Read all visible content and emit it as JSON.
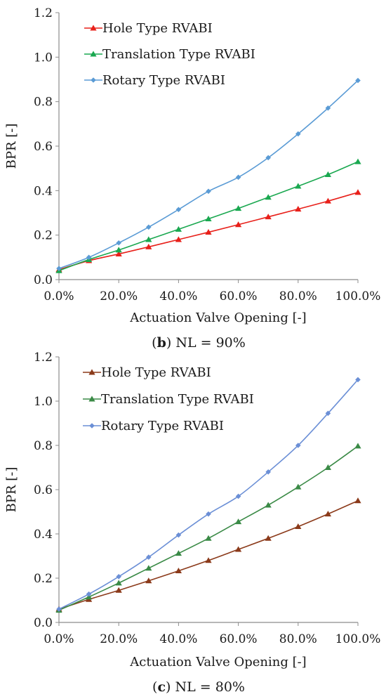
{
  "chart_data": [
    {
      "type": "line",
      "caption": {
        "letter": "b",
        "rest": " NL = 90%"
      },
      "xlabel": "Actuation Valve Opening [-]",
      "ylabel": "BPR [-]",
      "xlim": [
        0,
        100
      ],
      "ylim": [
        0,
        1.2
      ],
      "yticks": [
        "0.0",
        "0.2",
        "0.4",
        "0.6",
        "0.8",
        "1.0",
        "1.2"
      ],
      "xticks": [
        "0.0%",
        "20.0%",
        "40.0%",
        "60.0%",
        "80.0%",
        "100.0%"
      ],
      "grid": false,
      "legend_position": "top-left",
      "x": [
        0,
        10,
        20,
        30,
        40,
        50,
        60,
        70,
        80,
        90,
        100
      ],
      "series": [
        {
          "name": "Hole Type RVABI",
          "color": "#e8201a",
          "marker": "triangle",
          "values": [
            0.045,
            0.085,
            0.115,
            0.147,
            0.18,
            0.213,
            0.247,
            0.282,
            0.317,
            0.353,
            0.392
          ]
        },
        {
          "name": "Translation Type RVABI",
          "color": "#1aa850",
          "marker": "triangle",
          "values": [
            0.04,
            0.09,
            0.133,
            0.18,
            0.226,
            0.273,
            0.32,
            0.37,
            0.42,
            0.472,
            0.53
          ]
        },
        {
          "name": "Rotary Type RVABI",
          "color": "#5a9bd5",
          "marker": "diamond",
          "values": [
            0.05,
            0.1,
            0.165,
            0.236,
            0.315,
            0.397,
            0.46,
            0.548,
            0.655,
            0.771,
            0.895
          ]
        }
      ]
    },
    {
      "type": "line",
      "caption": {
        "letter": "c",
        "rest": " NL = 80%"
      },
      "xlabel": "Actuation Valve Opening [-]",
      "ylabel": "BPR [-]",
      "xlim": [
        0,
        100
      ],
      "ylim": [
        0,
        1.2
      ],
      "yticks": [
        "0.0",
        "0.2",
        "0.4",
        "0.6",
        "0.8",
        "1.0",
        "1.2"
      ],
      "xticks": [
        "0.0%",
        "20.0%",
        "40.0%",
        "60.0%",
        "80.0%",
        "100.0%"
      ],
      "grid": false,
      "legend_position": "top-left",
      "x": [
        0,
        10,
        20,
        30,
        40,
        50,
        60,
        70,
        80,
        90,
        100
      ],
      "series": [
        {
          "name": "Hole Type RVABI",
          "color": "#8b3a1a",
          "marker": "triangle",
          "values": [
            0.06,
            0.104,
            0.145,
            0.188,
            0.233,
            0.28,
            0.33,
            0.38,
            0.433,
            0.49,
            0.55
          ]
        },
        {
          "name": "Translation Type RVABI",
          "color": "#3a8a46",
          "marker": "triangle",
          "values": [
            0.055,
            0.115,
            0.178,
            0.245,
            0.312,
            0.38,
            0.455,
            0.53,
            0.612,
            0.7,
            0.797
          ]
        },
        {
          "name": "Rotary Type RVABI",
          "color": "#6b8fd6",
          "marker": "diamond",
          "values": [
            0.06,
            0.128,
            0.207,
            0.295,
            0.395,
            0.49,
            0.57,
            0.68,
            0.8,
            0.945,
            1.097
          ]
        }
      ]
    }
  ]
}
